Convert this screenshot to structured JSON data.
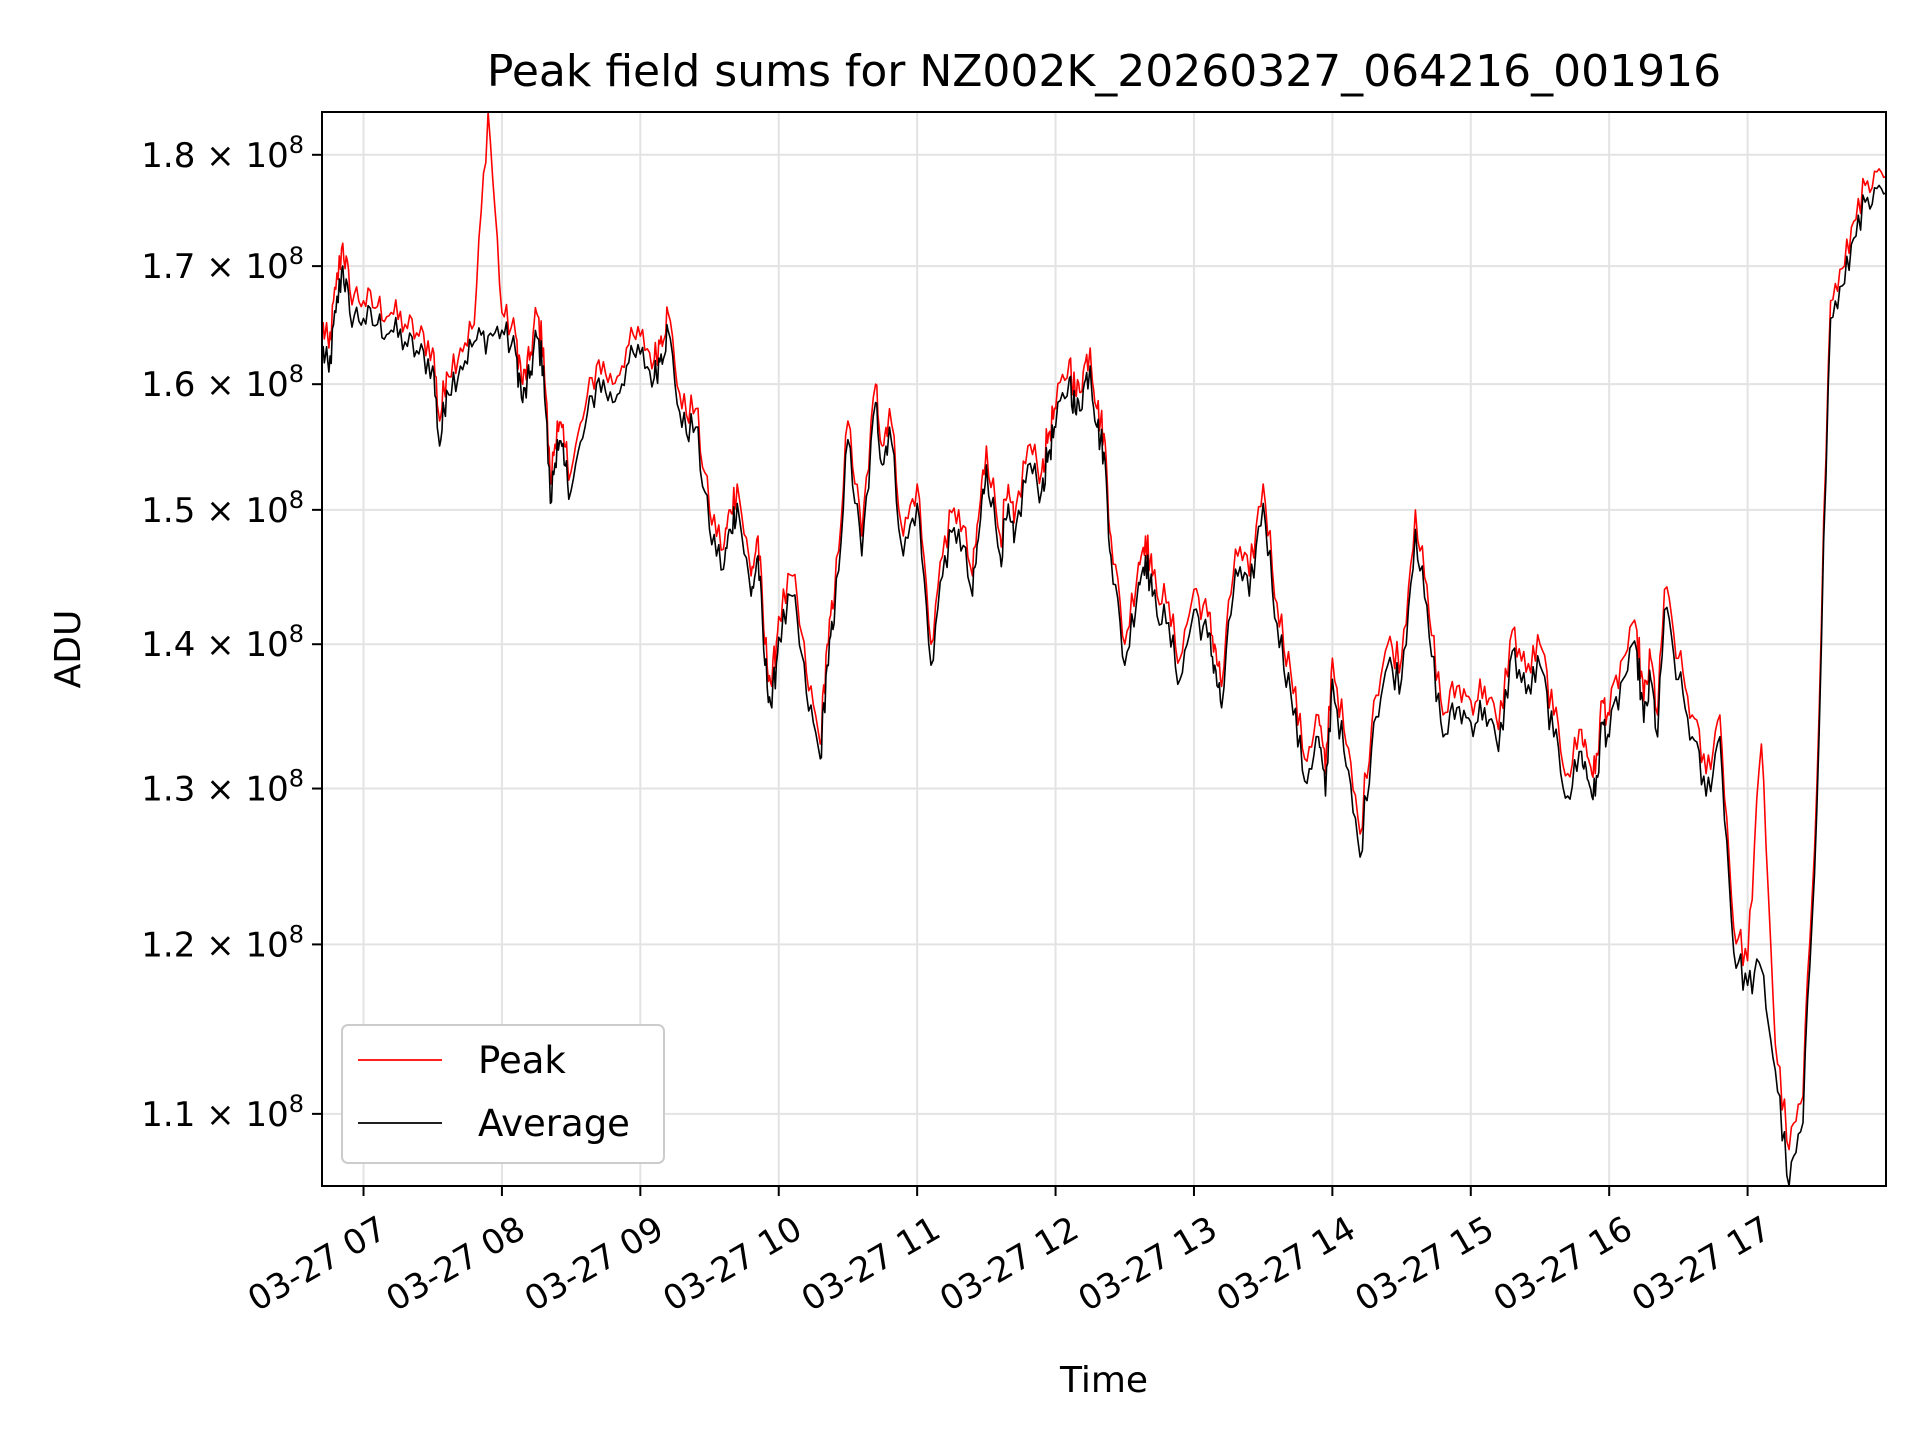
{
  "chart_data": {
    "type": "line",
    "title": "Peak field sums for NZ002K_20260327_064216_001916",
    "xlabel": "Time",
    "ylabel": "ADU",
    "y_scale": "log",
    "x_range": [
      "03-27 06:42",
      "03-27 18:00"
    ],
    "ylim": [
      106000000,
      184000000
    ],
    "grid": true,
    "legend_position": "lower-left",
    "x_ticks": [
      "03-27 07",
      "03-27 08",
      "03-27 09",
      "03-27 10",
      "03-27 11",
      "03-27 12",
      "03-27 13",
      "03-27 14",
      "03-27 15",
      "03-27 16",
      "03-27 17"
    ],
    "y_ticks": [
      {
        "value": 110000000,
        "label": "1.1 × 10",
        "exp": "8"
      },
      {
        "value": 120000000,
        "label": "1.2 × 10",
        "exp": "8"
      },
      {
        "value": 130000000,
        "label": "1.3 × 10",
        "exp": "8"
      },
      {
        "value": 140000000,
        "label": "1.4 × 10",
        "exp": "8"
      },
      {
        "value": 150000000,
        "label": "1.5 × 10",
        "exp": "8"
      },
      {
        "value": 160000000,
        "label": "1.6 × 10",
        "exp": "8"
      },
      {
        "value": 170000000,
        "label": "1.7 × 10",
        "exp": "8"
      },
      {
        "value": 180000000,
        "label": "1.8 × 10",
        "exp": "8"
      }
    ],
    "series": [
      {
        "name": "Peak",
        "color": "#ff0000"
      },
      {
        "name": "Average",
        "color": "#000000"
      }
    ],
    "x_hours": [
      6.7,
      6.75,
      6.8,
      6.85,
      6.9,
      7.0,
      7.1,
      7.2,
      7.3,
      7.4,
      7.5,
      7.55,
      7.6,
      7.7,
      7.8,
      7.9,
      8.0,
      8.1,
      8.15,
      8.2,
      8.25,
      8.3,
      8.35,
      8.4,
      8.45,
      8.5,
      8.6,
      8.7,
      8.8,
      8.9,
      9.0,
      9.1,
      9.15,
      9.2,
      9.3,
      9.4,
      9.5,
      9.6,
      9.65,
      9.7,
      9.8,
      9.85,
      9.9,
      9.95,
      10.0,
      10.1,
      10.2,
      10.3,
      10.35,
      10.4,
      10.5,
      10.6,
      10.7,
      10.75,
      10.8,
      10.9,
      11.0,
      11.1,
      11.2,
      11.3,
      11.4,
      11.45,
      11.5,
      11.6,
      11.65,
      11.7,
      11.8,
      11.9,
      11.95,
      12.0,
      12.1,
      12.15,
      12.2,
      12.25,
      12.3,
      12.35,
      12.4,
      12.5,
      12.6,
      12.65,
      12.7,
      12.8,
      12.9,
      13.0,
      13.1,
      13.15,
      13.2,
      13.3,
      13.4,
      13.5,
      13.6,
      13.7,
      13.8,
      13.9,
      13.95,
      14.0,
      14.1,
      14.2,
      14.3,
      14.4,
      14.5,
      14.6,
      14.7,
      14.8,
      14.9,
      15.0,
      15.1,
      15.2,
      15.3,
      15.4,
      15.5,
      15.6,
      15.7,
      15.8,
      15.85,
      15.9,
      15.95,
      16.0,
      16.1,
      16.2,
      16.25,
      16.3,
      16.35,
      16.4,
      16.5,
      16.6,
      16.7,
      16.8,
      16.9,
      17.0,
      17.1,
      17.2,
      17.3,
      17.4,
      17.5,
      17.6,
      17.7,
      17.8,
      17.9,
      18.0
    ],
    "peak_values": [
      165000000,
      163000000,
      168000000,
      172000000,
      168000000,
      167000000,
      166500000,
      166000000,
      165000000,
      164000000,
      163000000,
      157000000,
      161000000,
      163000000,
      165000000,
      184000000,
      166000000,
      164000000,
      160000000,
      162000000,
      166000000,
      163000000,
      152000000,
      157000000,
      155000000,
      153000000,
      158000000,
      162000000,
      160000000,
      163000000,
      164000000,
      162000000,
      164000000,
      166000000,
      158000000,
      158000000,
      150000000,
      147000000,
      150000000,
      152000000,
      145000000,
      148000000,
      140000000,
      137000000,
      142000000,
      145000000,
      138000000,
      133000000,
      140000000,
      143000000,
      157000000,
      148000000,
      160000000,
      155000000,
      158000000,
      148000000,
      152000000,
      140000000,
      148000000,
      150000000,
      145000000,
      150000000,
      155000000,
      148000000,
      151000000,
      149000000,
      155000000,
      153000000,
      156000000,
      158000000,
      162000000,
      159000000,
      161000000,
      163000000,
      158000000,
      156000000,
      148000000,
      140000000,
      146000000,
      148000000,
      145000000,
      143000000,
      139000000,
      144000000,
      142000000,
      140000000,
      137000000,
      147000000,
      145000000,
      152000000,
      143000000,
      138000000,
      132000000,
      135000000,
      131000000,
      139000000,
      133000000,
      127000000,
      136000000,
      140000000,
      139000000,
      150000000,
      142000000,
      135000000,
      137000000,
      136000000,
      137000000,
      134000000,
      141000000,
      138000000,
      140000000,
      135000000,
      131000000,
      134000000,
      132000000,
      131000000,
      136000000,
      135000000,
      139000000,
      141000000,
      136000000,
      139000000,
      135000000,
      144000000,
      139000000,
      135000000,
      131000000,
      135000000,
      121000000,
      119000000,
      133000000,
      114000000,
      108000000,
      111000000,
      130000000,
      167000000,
      170000000,
      176000000,
      177000000,
      178000000
    ],
    "average_values": [
      163000000,
      161000000,
      166000000,
      170000000,
      166000000,
      165500000,
      165000000,
      164500000,
      163500000,
      162500000,
      161500000,
      155000000,
      159500000,
      161500000,
      163500000,
      164000000,
      164500000,
      162500000,
      158500000,
      160500000,
      164000000,
      161500000,
      150500000,
      155500000,
      153500000,
      151500000,
      156500000,
      160500000,
      158500000,
      161500000,
      162500000,
      160500000,
      162500000,
      164500000,
      156500000,
      156500000,
      148500000,
      145500000,
      148500000,
      150500000,
      143500000,
      146500000,
      138500000,
      135500000,
      140500000,
      143500000,
      136500000,
      132000000,
      138500000,
      141500000,
      155500000,
      146500000,
      158500000,
      153500000,
      156500000,
      146500000,
      150500000,
      138500000,
      146500000,
      148500000,
      143500000,
      148500000,
      153500000,
      146500000,
      149500000,
      147500000,
      153500000,
      151500000,
      154500000,
      156500000,
      160500000,
      157500000,
      159500000,
      161500000,
      156500000,
      154500000,
      146500000,
      138500000,
      144500000,
      146500000,
      143500000,
      141500000,
      137500000,
      142500000,
      140500000,
      138500000,
      135500000,
      145500000,
      143500000,
      150500000,
      141500000,
      136500000,
      130500000,
      133500000,
      129500000,
      137500000,
      131500000,
      125500000,
      134500000,
      138500000,
      137500000,
      148500000,
      140500000,
      133500000,
      135500000,
      134500000,
      135500000,
      132500000,
      139500000,
      136500000,
      138500000,
      133500000,
      129500000,
      132500000,
      130500000,
      129500000,
      134500000,
      133500000,
      137500000,
      139500000,
      134500000,
      137500000,
      133500000,
      142500000,
      137500000,
      133500000,
      129500000,
      133500000,
      119500000,
      117500000,
      118500000,
      112500000,
      106000000,
      109500000,
      128500000,
      165500000,
      168500000,
      174500000,
      175500000,
      176500000
    ]
  }
}
